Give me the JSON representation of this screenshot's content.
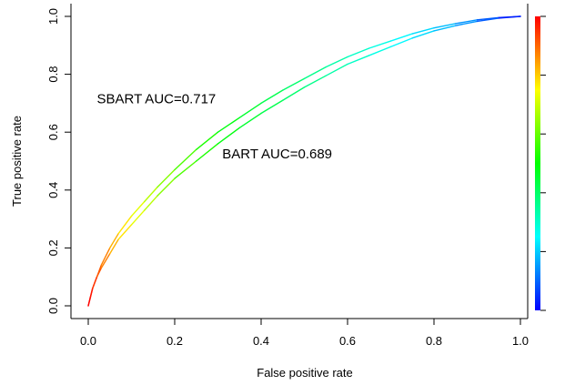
{
  "chart_data": {
    "type": "line",
    "xlabel": "False positive rate",
    "ylabel": "True positive rate",
    "xlim": [
      0,
      1
    ],
    "ylim": [
      0,
      1
    ],
    "x_ticks": [
      "0.0",
      "0.2",
      "0.4",
      "0.6",
      "0.8",
      "1.0"
    ],
    "y_ticks": [
      "0.0",
      "0.2",
      "0.4",
      "0.6",
      "0.8",
      "1.0"
    ],
    "colorbar_ticks": [
      "0",
      "0.2",
      "0.4",
      "0.6",
      "0.8",
      "1"
    ],
    "colorbar_range": [
      0,
      1
    ],
    "colormap": [
      "#0000ff",
      "#00ffff",
      "#00ff00",
      "#ffff00",
      "#ff0000"
    ],
    "grid": false,
    "annotations": [
      {
        "text": "SBART AUC=0.717",
        "x": 0.02,
        "y": 0.7
      },
      {
        "text": "BART AUC=0.689",
        "x": 0.31,
        "y": 0.51
      }
    ],
    "series": [
      {
        "x": [
          0,
          0.005,
          0.01,
          0.02,
          0.03,
          0.05,
          0.07,
          0.1,
          0.13,
          0.16,
          0.2,
          0.25,
          0.3,
          0.35,
          0.4,
          0.45,
          0.5,
          0.55,
          0.6,
          0.65,
          0.7,
          0.75,
          0.8,
          0.85,
          0.9,
          0.95,
          1.0
        ],
        "y": [
          0,
          0.03,
          0.06,
          0.1,
          0.14,
          0.2,
          0.25,
          0.31,
          0.36,
          0.41,
          0.47,
          0.54,
          0.6,
          0.65,
          0.7,
          0.745,
          0.785,
          0.825,
          0.86,
          0.89,
          0.915,
          0.94,
          0.96,
          0.975,
          0.988,
          0.996,
          1.0
        ],
        "threshold": [
          1.0,
          0.99,
          0.97,
          0.93,
          0.9,
          0.85,
          0.8,
          0.75,
          0.7,
          0.66,
          0.6,
          0.55,
          0.5,
          0.47,
          0.44,
          0.41,
          0.38,
          0.35,
          0.32,
          0.29,
          0.26,
          0.23,
          0.2,
          0.17,
          0.12,
          0.06,
          0.0
        ]
      },
      {
        "x": [
          0,
          0.005,
          0.01,
          0.02,
          0.03,
          0.05,
          0.07,
          0.1,
          0.13,
          0.16,
          0.2,
          0.25,
          0.3,
          0.35,
          0.4,
          0.45,
          0.5,
          0.55,
          0.6,
          0.65,
          0.7,
          0.75,
          0.8,
          0.85,
          0.9,
          0.95,
          1.0
        ],
        "y": [
          0,
          0.03,
          0.06,
          0.1,
          0.13,
          0.18,
          0.23,
          0.28,
          0.33,
          0.38,
          0.44,
          0.5,
          0.56,
          0.615,
          0.665,
          0.71,
          0.755,
          0.795,
          0.835,
          0.865,
          0.895,
          0.925,
          0.95,
          0.968,
          0.983,
          0.994,
          1.0
        ],
        "threshold": [
          1.0,
          0.99,
          0.97,
          0.93,
          0.9,
          0.85,
          0.8,
          0.75,
          0.7,
          0.66,
          0.6,
          0.55,
          0.5,
          0.47,
          0.44,
          0.41,
          0.38,
          0.35,
          0.32,
          0.29,
          0.26,
          0.23,
          0.2,
          0.17,
          0.12,
          0.06,
          0.0
        ]
      }
    ]
  }
}
